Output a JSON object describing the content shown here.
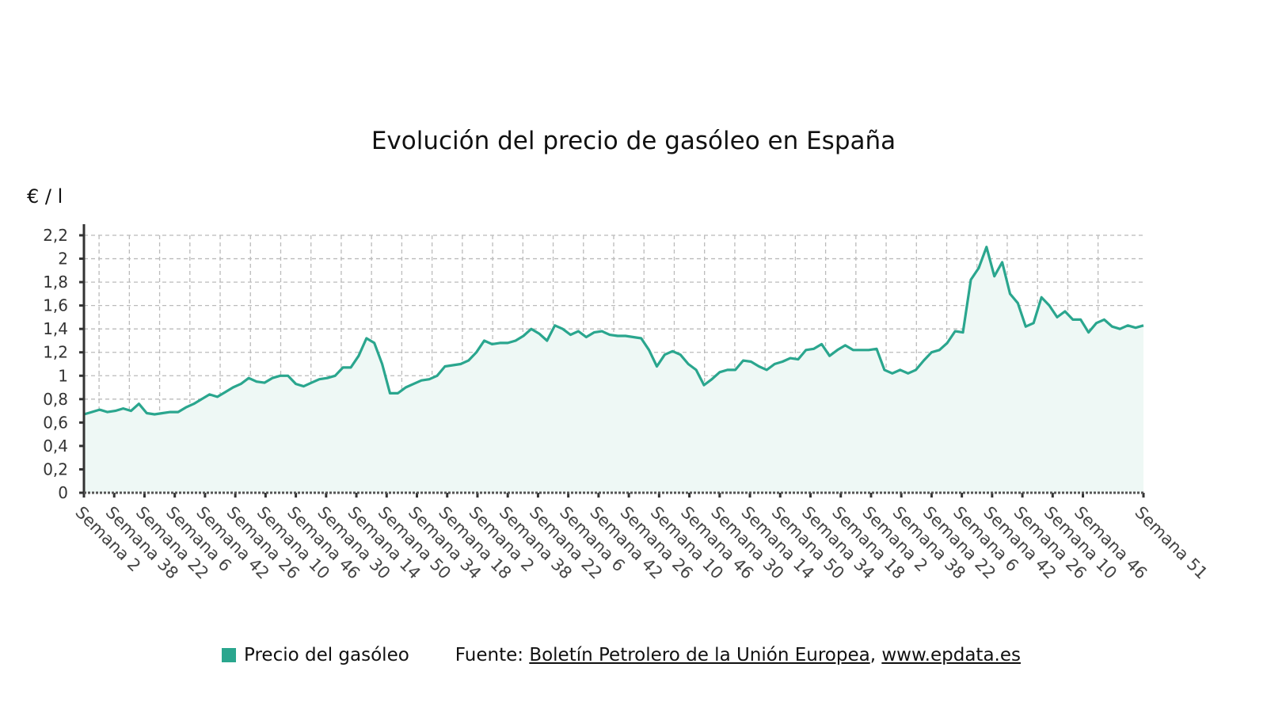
{
  "chart_data": {
    "type": "area",
    "title": "Evolución del precio de gasóleo en España",
    "ylabel": "€ / l",
    "xlabel": "",
    "ylim": [
      0,
      2.2
    ],
    "yticks": [
      "0",
      "0,2",
      "0,4",
      "0,6",
      "0,8",
      "1",
      "1,2",
      "1,4",
      "1,6",
      "1,8",
      "2",
      "2,2"
    ],
    "xticks": [
      "Semana 2",
      "Semana 38",
      "Semana 22",
      "Semana 6",
      "Semana 42",
      "Semana 26",
      "Semana 10",
      "Semana 46",
      "Semana 30",
      "Semana 14",
      "Semana 50",
      "Semana 34",
      "Semana 18",
      "Semana 2",
      "Semana 38",
      "Semana 22",
      "Semana 6",
      "Semana 42",
      "Semana 26",
      "Semana 10",
      "Semana 46",
      "Semana 30",
      "Semana 14",
      "Semana 50",
      "Semana 34",
      "Semana 18",
      "Semana 2",
      "Semana 38",
      "Semana 22",
      "Semana 6",
      "Semana 42",
      "Semana 26",
      "Semana 10",
      "Semana 46",
      "Semana 51"
    ],
    "grid": true,
    "legend_position": "bottom-left",
    "series": [
      {
        "name": "Precio del gasóleo",
        "color": "#2aa68e",
        "values": [
          0.67,
          0.69,
          0.71,
          0.69,
          0.7,
          0.72,
          0.7,
          0.76,
          0.68,
          0.67,
          0.68,
          0.69,
          0.69,
          0.73,
          0.76,
          0.8,
          0.84,
          0.82,
          0.86,
          0.9,
          0.93,
          0.98,
          0.95,
          0.94,
          0.98,
          1.0,
          1.0,
          0.93,
          0.91,
          0.94,
          0.97,
          0.98,
          1.0,
          1.07,
          1.07,
          1.17,
          1.32,
          1.28,
          1.1,
          0.85,
          0.85,
          0.9,
          0.93,
          0.96,
          0.97,
          1.0,
          1.08,
          1.09,
          1.1,
          1.13,
          1.2,
          1.3,
          1.27,
          1.28,
          1.28,
          1.3,
          1.34,
          1.4,
          1.36,
          1.3,
          1.43,
          1.4,
          1.35,
          1.38,
          1.33,
          1.37,
          1.38,
          1.35,
          1.34,
          1.34,
          1.33,
          1.32,
          1.22,
          1.08,
          1.18,
          1.21,
          1.18,
          1.1,
          1.05,
          0.92,
          0.97,
          1.03,
          1.05,
          1.05,
          1.13,
          1.12,
          1.08,
          1.05,
          1.1,
          1.12,
          1.15,
          1.14,
          1.22,
          1.23,
          1.27,
          1.17,
          1.22,
          1.26,
          1.22,
          1.22,
          1.22,
          1.23,
          1.05,
          1.02,
          1.05,
          1.02,
          1.05,
          1.13,
          1.2,
          1.22,
          1.28,
          1.38,
          1.37,
          1.82,
          1.92,
          2.1,
          1.85,
          1.97,
          1.7,
          1.62,
          1.42,
          1.45,
          1.67,
          1.6,
          1.5,
          1.55,
          1.48,
          1.48,
          1.37,
          1.45,
          1.48,
          1.42,
          1.4,
          1.43,
          1.41,
          1.43
        ]
      }
    ]
  },
  "footer": {
    "legend_label": "Precio del gasóleo",
    "source_prefix": "Fuente:",
    "source_link": "Boletín Petrolero de la Unión Europea",
    "separator": ",",
    "site_link": "www.epdata.es"
  }
}
